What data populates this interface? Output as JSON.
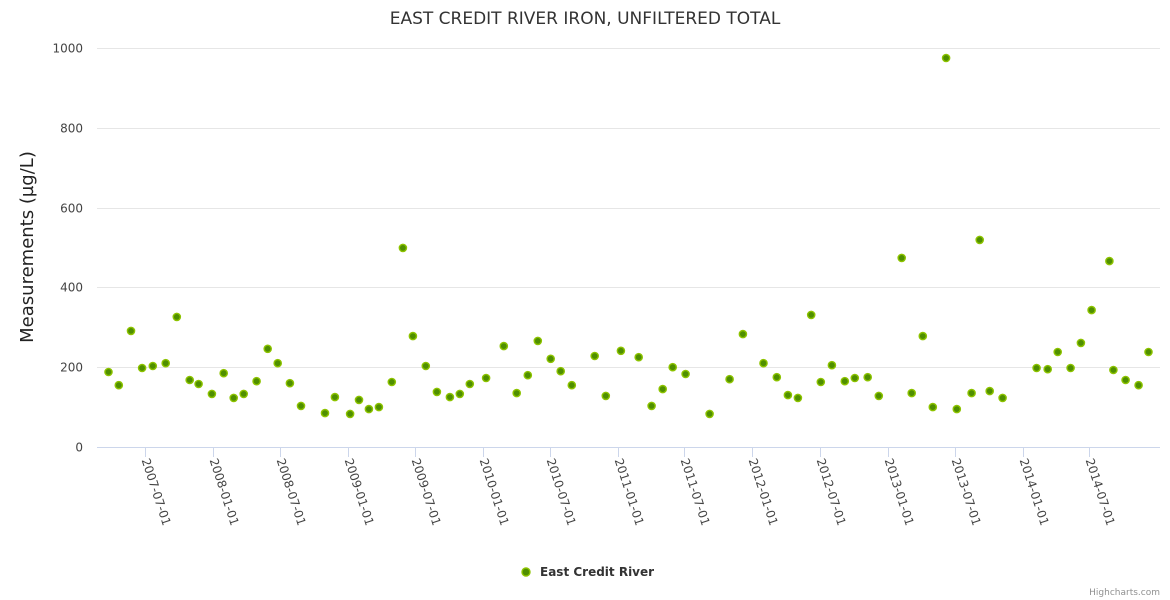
{
  "chart_data": {
    "type": "scatter",
    "title": "EAST CREDIT RIVER IRON, UNFILTERED TOTAL",
    "xlabel": "",
    "ylabel": "Measurements (µg/L)",
    "ylim": [
      0,
      1000
    ],
    "yticks": [
      0,
      200,
      400,
      600,
      800,
      1000
    ],
    "xlim": [
      "2007-02-22",
      "2015-01-08"
    ],
    "xticks": [
      "2007-07-01",
      "2008-01-01",
      "2008-07-01",
      "2009-01-01",
      "2009-07-01",
      "2010-01-01",
      "2010-07-01",
      "2011-01-01",
      "2011-07-01",
      "2012-01-01",
      "2012-07-01",
      "2013-01-01",
      "2013-07-01",
      "2014-01-01",
      "2014-07-01"
    ],
    "grid": true,
    "legend_position": "bottom-center",
    "credit": "Highcharts.com",
    "series": [
      {
        "name": "East Credit River",
        "color": "#4f8f00",
        "edge_color": "#8dc300",
        "points": [
          [
            "2007-03-25",
            188
          ],
          [
            "2007-04-22",
            155
          ],
          [
            "2007-05-25",
            291
          ],
          [
            "2007-06-24",
            198
          ],
          [
            "2007-07-23",
            203
          ],
          [
            "2007-08-27",
            210
          ],
          [
            "2007-09-26",
            326
          ],
          [
            "2007-10-31",
            168
          ],
          [
            "2007-11-24",
            158
          ],
          [
            "2007-12-30",
            133
          ],
          [
            "2008-01-31",
            185
          ],
          [
            "2008-02-27",
            123
          ],
          [
            "2008-03-25",
            133
          ],
          [
            "2008-04-29",
            165
          ],
          [
            "2008-05-29",
            246
          ],
          [
            "2008-06-25",
            210
          ],
          [
            "2008-07-28",
            160
          ],
          [
            "2008-08-27",
            103
          ],
          [
            "2008-10-31",
            85
          ],
          [
            "2008-11-27",
            125
          ],
          [
            "2009-01-07",
            83
          ],
          [
            "2009-01-31",
            118
          ],
          [
            "2009-02-27",
            95
          ],
          [
            "2009-03-26",
            100
          ],
          [
            "2009-04-30",
            163
          ],
          [
            "2009-05-30",
            499
          ],
          [
            "2009-06-26",
            278
          ],
          [
            "2009-07-31",
            203
          ],
          [
            "2009-08-30",
            138
          ],
          [
            "2009-10-04",
            125
          ],
          [
            "2009-10-31",
            133
          ],
          [
            "2009-11-27",
            158
          ],
          [
            "2010-01-10",
            173
          ],
          [
            "2010-02-27",
            253
          ],
          [
            "2010-04-03",
            135
          ],
          [
            "2010-05-03",
            180
          ],
          [
            "2010-05-30",
            266
          ],
          [
            "2010-07-04",
            221
          ],
          [
            "2010-07-31",
            190
          ],
          [
            "2010-08-30",
            155
          ],
          [
            "2010-10-31",
            228
          ],
          [
            "2010-11-30",
            128
          ],
          [
            "2011-01-10",
            241
          ],
          [
            "2011-02-27",
            225
          ],
          [
            "2011-04-03",
            103
          ],
          [
            "2011-05-03",
            145
          ],
          [
            "2011-05-30",
            200
          ],
          [
            "2011-07-04",
            183
          ],
          [
            "2011-09-07",
            83
          ],
          [
            "2011-10-31",
            170
          ],
          [
            "2011-12-06",
            283
          ],
          [
            "2012-01-31",
            210
          ],
          [
            "2012-03-07",
            175
          ],
          [
            "2012-04-06",
            130
          ],
          [
            "2012-05-03",
            123
          ],
          [
            "2012-06-08",
            331
          ],
          [
            "2012-07-04",
            163
          ],
          [
            "2012-08-03",
            205
          ],
          [
            "2012-09-07",
            165
          ],
          [
            "2012-10-04",
            173
          ],
          [
            "2012-11-08",
            175
          ],
          [
            "2012-12-08",
            128
          ],
          [
            "2013-02-08",
            474
          ],
          [
            "2013-03-07",
            135
          ],
          [
            "2013-04-06",
            278
          ],
          [
            "2013-05-03",
            100
          ],
          [
            "2013-06-08",
            975
          ],
          [
            "2013-07-07",
            95
          ],
          [
            "2013-08-16",
            135
          ],
          [
            "2013-09-07",
            519
          ],
          [
            "2013-10-04",
            140
          ],
          [
            "2013-11-08",
            123
          ],
          [
            "2014-02-08",
            198
          ],
          [
            "2014-03-10",
            195
          ],
          [
            "2014-04-06",
            238
          ],
          [
            "2014-05-11",
            198
          ],
          [
            "2014-06-08",
            261
          ],
          [
            "2014-07-07",
            343
          ],
          [
            "2014-08-24",
            466
          ],
          [
            "2014-09-04",
            193
          ],
          [
            "2014-10-07",
            168
          ],
          [
            "2014-11-11",
            155
          ],
          [
            "2014-12-08",
            238
          ]
        ]
      }
    ]
  }
}
